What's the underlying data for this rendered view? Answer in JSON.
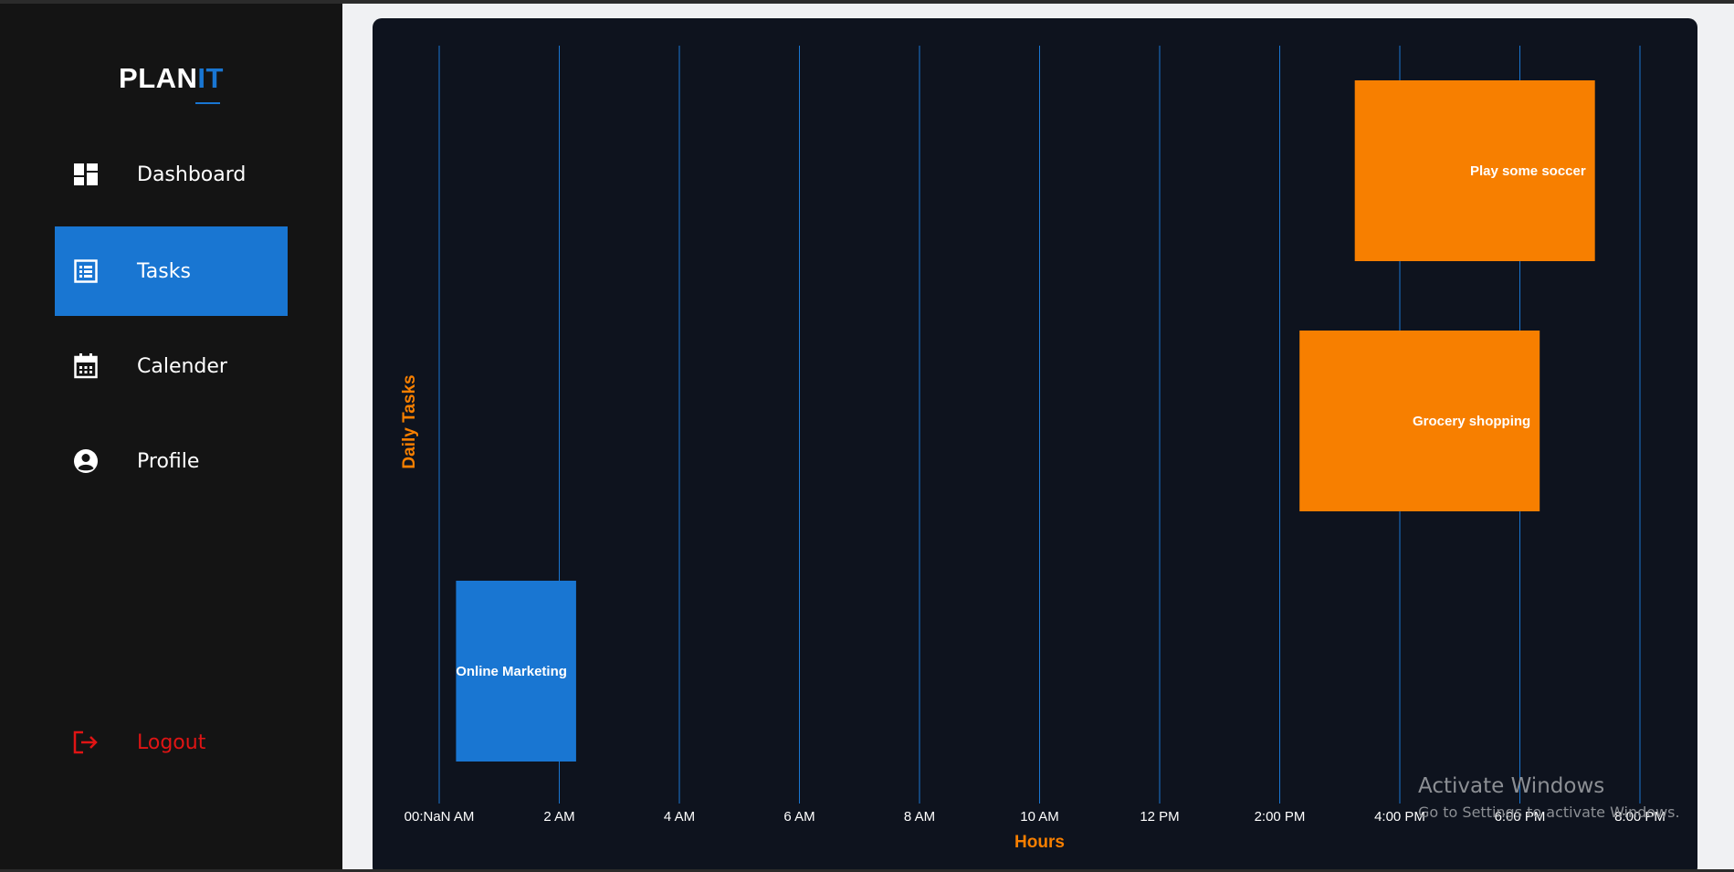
{
  "app": {
    "logo_part1": "PLAN",
    "logo_part2": "IT",
    "accent_color": "#1976d2"
  },
  "sidebar": {
    "items": [
      {
        "label": "Dashboard",
        "icon": "dashboard-icon",
        "active": false
      },
      {
        "label": "Tasks",
        "icon": "tasks-list-icon",
        "active": true
      },
      {
        "label": "Calender",
        "icon": "calendar-icon",
        "active": false
      },
      {
        "label": "Profile",
        "icon": "profile-icon",
        "active": false
      }
    ],
    "logout": {
      "label": "Logout",
      "icon": "logout-icon",
      "color": "#e01414"
    }
  },
  "chart_data": {
    "type": "bar",
    "orientation": "horizontal-timeline",
    "ylabel": "Daily Tasks",
    "xlabel": "Hours",
    "x_tick_labels": [
      "00:NaN AM",
      "2 AM",
      "4 AM",
      "6 AM",
      "8 AM",
      "10 AM",
      "12 PM",
      "2:00 PM",
      "4:00 PM",
      "6:00 PM",
      "8:00 PM"
    ],
    "x_range_hours": [
      0,
      20
    ],
    "grid": "vertical",
    "tasks": [
      {
        "name": "Play some soccer",
        "start_hour": 15.25,
        "end_hour": 19.25,
        "color": "#f77f00"
      },
      {
        "name": "Grocery shopping",
        "start_hour": 14.33,
        "end_hour": 18.33,
        "color": "#f77f00"
      },
      {
        "name": "Online Marketing",
        "start_hour": 0.28,
        "end_hour": 2.28,
        "color": "#1976d2"
      }
    ],
    "colors": {
      "grid": "#1976d2",
      "axis_title": "#f77f00",
      "tick_label": "#ffffff"
    }
  },
  "watermark": {
    "line1": "Activate Windows",
    "line2": "Go to Settings to activate Windows."
  }
}
